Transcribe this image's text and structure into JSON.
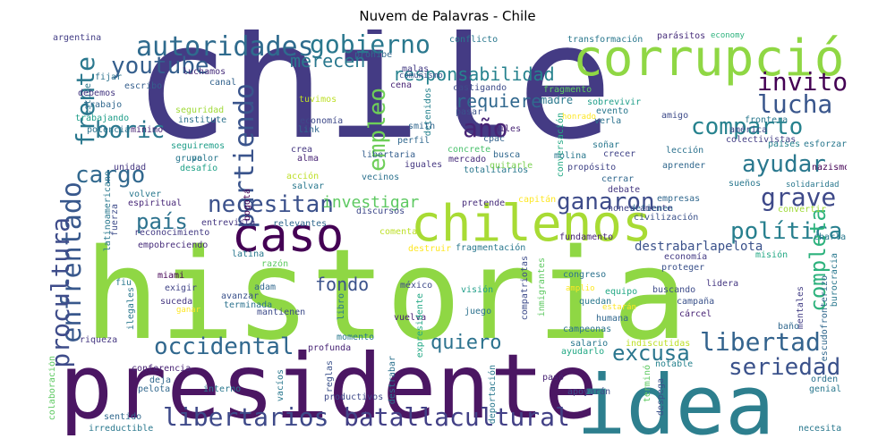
{
  "title": "Nuvem de Palavras - Chile",
  "words": [
    "chile",
    "historia",
    "presidente",
    "idea",
    "corrupción",
    "chilenos",
    "caso",
    "autoridades",
    "gobierno",
    "youtube",
    "frente",
    "enfrentado",
    "procultura",
    "boric",
    "cargo",
    "partiendo",
    "empleo",
    "año",
    "responsabilidad",
    "requiere",
    "invito",
    "lucha",
    "comparto",
    "ayudar",
    "grave",
    "política",
    "completa",
    "país",
    "necesitan",
    "investigar",
    "ganaron",
    "fondo",
    "occidental",
    "quiero",
    "excusa",
    "libertad",
    "seriedad",
    "libertarios",
    "batallacultural",
    "merecen",
    "destrabarlapelota",
    "argentina",
    "conflicto",
    "transformación",
    "parásitos",
    "economy",
    "fijar",
    "estuve",
    "escribo",
    "luchamos",
    "debemos",
    "trabajo",
    "trabajando",
    "potencia",
    "mínimo",
    "institute",
    "seguridad",
    "seguiremos",
    "valor",
    "desafío",
    "grupo",
    "unidad",
    "tuvimos",
    "canal",
    "cena",
    "comunismo",
    "prohíbe",
    "malas",
    "castigando",
    "madre",
    "sobrevivir",
    "fragmento",
    "honrado",
    "evento",
    "verla",
    "conversación",
    "detenidos",
    "concrete",
    "pasar",
    "smith",
    "miles",
    "cpac",
    "perfil",
    "libertaria",
    "iguales",
    "busca",
    "molina",
    "mercado",
    "totalitarios",
    "vecinos",
    "quitarle",
    "crecer",
    "frontera",
    "américa",
    "colectivistas",
    "amigo",
    "economía",
    "link",
    "crea",
    "alma",
    "acción",
    "salvar",
    "soñar",
    "propósito",
    "lección",
    "aprender",
    "cerrar",
    "países",
    "esforzaron",
    "nazismo",
    "solidaridad",
    "sueños",
    "empresas",
    "detienen",
    "convertir",
    "civilización",
    "honestamente",
    "debate",
    "capitán",
    "pretende",
    "discursos",
    "relevantes",
    "entrevista",
    "espiritual",
    "volver",
    "latinoamericano",
    "fuerza",
    "bogotá",
    "reconocimiento",
    "empobreciendo",
    "miami",
    "latina",
    "razón",
    "comenta",
    "destruir",
    "fragmentación",
    "fundamento",
    "economía",
    "misión",
    "charla",
    "burocracia",
    "proteger",
    "lidera",
    "congreso",
    "amplio",
    "equipo",
    "buscando",
    "visión",
    "méxico",
    "adam",
    "exigir",
    "avanzar",
    "terminada",
    "suceda",
    "ganar",
    "mantienen",
    "fiu",
    "ilegales",
    "libro",
    "vuelva",
    "juego",
    "expresidente",
    "compatriotas",
    "inmigrantes",
    "quedan",
    "estarán",
    "humana",
    "cárcel",
    "campaña",
    "mentales",
    "escudofronterizo",
    "baño",
    "riqueza",
    "profunda",
    "momento",
    "campeonas",
    "salario",
    "indiscutidas",
    "ayudarlo",
    "notable",
    "orden",
    "genial",
    "conferencia",
    "deja",
    "pelota",
    "interno",
    "vacíos",
    "reglas",
    "destrabar",
    "deportación",
    "pasó",
    "apoyarán",
    "despega",
    "terminó",
    "colaboración",
    "sentido",
    "irreductible",
    "productivos",
    "necesita"
  ]
}
